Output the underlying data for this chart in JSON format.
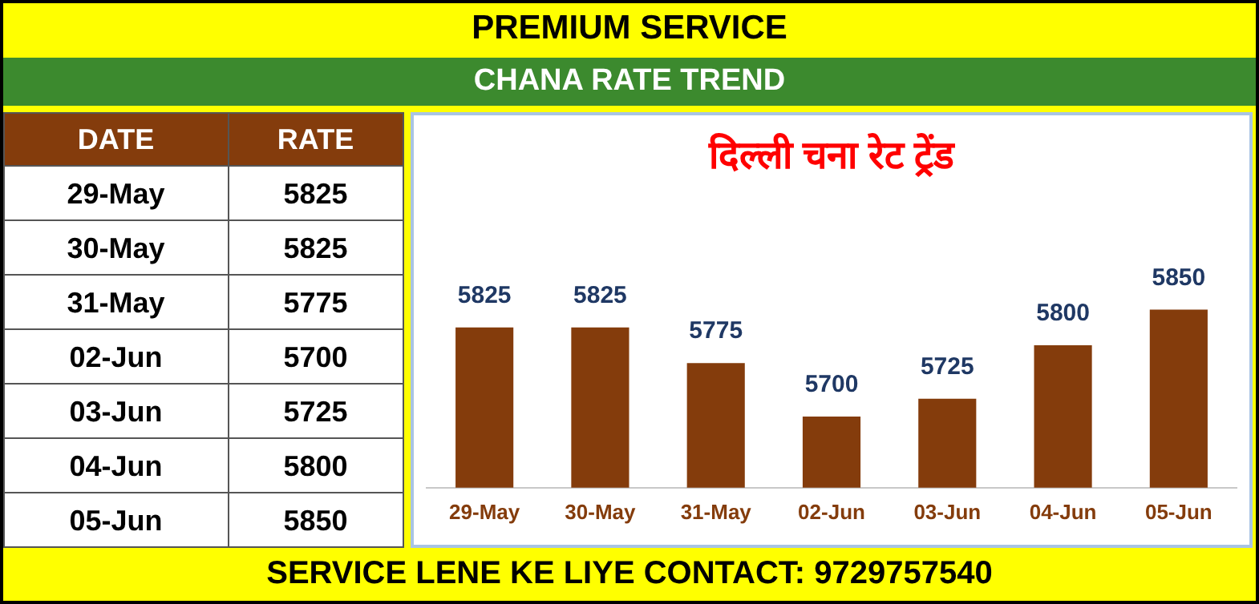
{
  "chart_data": {
    "type": "bar",
    "title": "दिल्ली चना रेट ट्रेंड",
    "subtitle": "CHANA RATE TREND",
    "annotations": [
      "PREMIUM SERVICE",
      "DATE",
      "RATE",
      "SERVICE LENE KE LIYE CONTACT: 9729757540"
    ],
    "categories": [
      "29-May",
      "30-May",
      "31-May",
      "02-Jun",
      "03-Jun",
      "04-Jun",
      "05-Jun"
    ],
    "values": [
      5825,
      5825,
      5775,
      5700,
      5725,
      5800,
      5850
    ],
    "value_labels": [
      "5825",
      "5825",
      "5775",
      "5700",
      "5725",
      "5800",
      "5850"
    ],
    "color": "#843c0c",
    "tick_labels": "x",
    "grid": false,
    "legend": false
  }
}
